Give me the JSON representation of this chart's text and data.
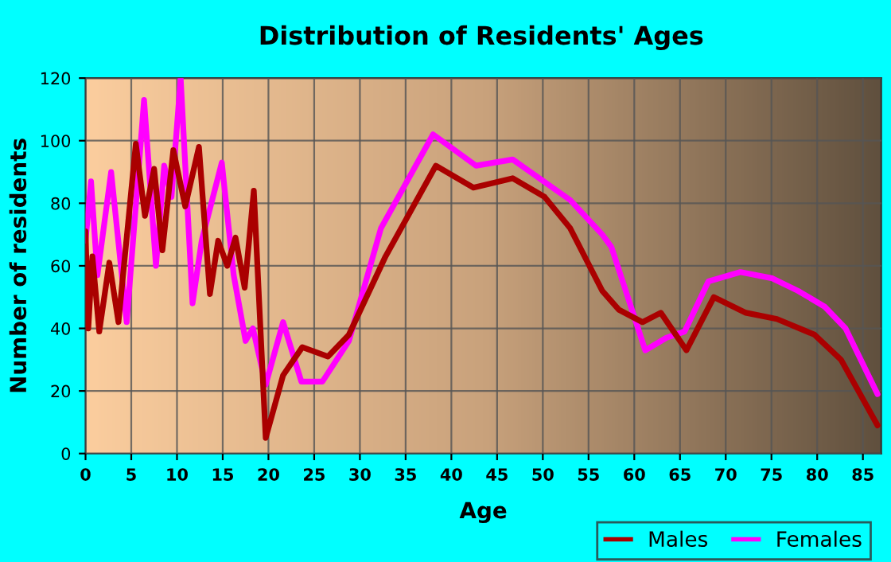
{
  "chart_data": {
    "type": "line",
    "title": "Distribution of Residents' Ages",
    "xlabel": "Age",
    "ylabel": "Number of residents",
    "xlim": [
      0,
      87
    ],
    "xticks": [
      0,
      5,
      10,
      15,
      20,
      25,
      30,
      35,
      40,
      45,
      50,
      55,
      60,
      65,
      70,
      75,
      80,
      85
    ],
    "ylim": [
      0,
      120
    ],
    "yticks": [
      0,
      20,
      40,
      60,
      80,
      100,
      120
    ],
    "grid": true,
    "legend": "bottom right",
    "series": [
      {
        "name": "Males",
        "color": "#aa0000",
        "x": [
          0,
          0.3,
          0.75,
          1.5,
          2.6,
          3.6,
          5.5,
          6.5,
          7.5,
          8.4,
          9.6,
          10.9,
          12.4,
          13.6,
          14.5,
          15.5,
          16.4,
          17.4,
          18.4,
          19.7,
          21.6,
          23.7,
          26.5,
          28.8,
          32.8,
          38.3,
          42.4,
          46.7,
          50.2,
          53,
          56.5,
          58.3,
          60.9,
          62.9,
          65.7,
          68.7,
          72.2,
          75.6,
          79.7,
          82.6,
          86.6
        ],
        "values": [
          71,
          40,
          63,
          39,
          61,
          42,
          99,
          76,
          91,
          65,
          97,
          79,
          98,
          51,
          68,
          60,
          69,
          53,
          84,
          5,
          25,
          34,
          31,
          38,
          63,
          92,
          85,
          88,
          82,
          72,
          52,
          46,
          42,
          45,
          33,
          50,
          45,
          43,
          38,
          30,
          9
        ]
      },
      {
        "name": "Females",
        "color": "#ff00ff",
        "x": [
          0,
          0.6,
          1.3,
          2.8,
          4.5,
          6.4,
          7.7,
          8.6,
          9.4,
          10.4,
          11.7,
          12.7,
          14.9,
          16.2,
          17.5,
          18.3,
          19.7,
          21.6,
          23.6,
          25.9,
          28.8,
          32.3,
          38,
          42.7,
          46.7,
          53,
          56.5,
          57.5,
          61.2,
          63.5,
          65.5,
          68.1,
          71.6,
          75.1,
          77.9,
          80.8,
          83.1,
          86.6
        ],
        "values": [
          68,
          87,
          57,
          90,
          42,
          113,
          60,
          92,
          82,
          120,
          48,
          68,
          93,
          57,
          36,
          40,
          22,
          42,
          23,
          23,
          36,
          72,
          102,
          92,
          94,
          81,
          70,
          66,
          33,
          37,
          39,
          55,
          58,
          56,
          52,
          47,
          40,
          19
        ]
      }
    ]
  }
}
